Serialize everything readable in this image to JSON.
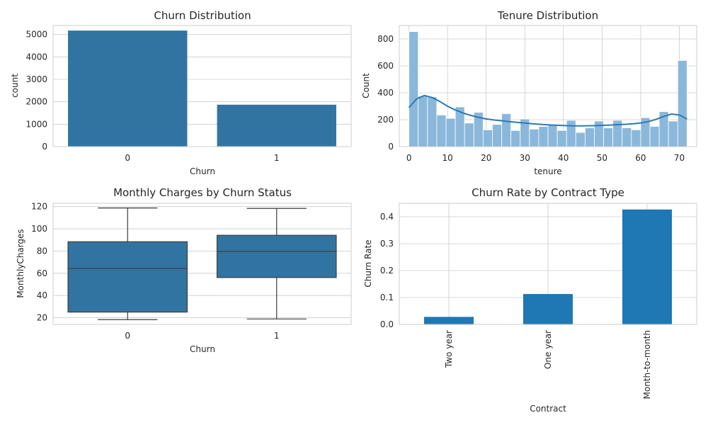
{
  "chart_data": [
    {
      "type": "bar",
      "title": "Churn Distribution",
      "xlabel": "Churn",
      "ylabel": "count",
      "categories": [
        "0",
        "1"
      ],
      "values": [
        5174,
        1869
      ],
      "ylim": [
        0,
        5400
      ],
      "yticks": [
        0,
        1000,
        2000,
        3000,
        4000,
        5000
      ],
      "color": "#3274a1",
      "grid": true
    },
    {
      "type": "histogram",
      "title": "Tenure Distribution",
      "xlabel": "tenure",
      "ylabel": "Count",
      "bin_start": 0,
      "bin_width": 2.4,
      "counts": [
        855,
        375,
        370,
        235,
        210,
        295,
        175,
        255,
        125,
        165,
        245,
        120,
        205,
        130,
        150,
        165,
        120,
        195,
        105,
        140,
        190,
        140,
        195,
        140,
        125,
        215,
        150,
        260,
        190,
        640
      ],
      "kde": {
        "x": [
          0,
          2,
          4,
          6,
          8,
          10,
          12,
          14,
          16,
          18,
          20,
          22,
          24,
          26,
          28,
          30,
          32,
          34,
          36,
          38,
          40,
          42,
          44,
          46,
          48,
          50,
          52,
          54,
          56,
          58,
          60,
          62,
          64,
          66,
          68,
          70,
          72
        ],
        "y": [
          290,
          355,
          380,
          365,
          335,
          300,
          272,
          250,
          232,
          218,
          206,
          198,
          192,
          186,
          180,
          175,
          170,
          166,
          162,
          159,
          157,
          155,
          154,
          155,
          156,
          158,
          160,
          163,
          166,
          170,
          176,
          186,
          203,
          225,
          242,
          236,
          205
        ]
      },
      "xlim": [
        -2.5,
        74.5
      ],
      "ylim": [
        0,
        900
      ],
      "xticks": [
        0,
        10,
        20,
        30,
        40,
        50,
        60,
        70
      ],
      "yticks": [
        0,
        200,
        400,
        600,
        800
      ],
      "bar_color": "#8bb8da",
      "line_color": "#2e78b5",
      "grid": true
    },
    {
      "type": "box",
      "title": "Monthly Charges by Churn Status",
      "xlabel": "Churn",
      "ylabel": "MonthlyCharges",
      "categories": [
        "0",
        "1"
      ],
      "boxes": [
        {
          "whisker_low": 18.3,
          "q1": 25.1,
          "median": 64.4,
          "q3": 88.4,
          "whisker_high": 118.8
        },
        {
          "whisker_low": 18.9,
          "q1": 56.2,
          "median": 79.7,
          "q3": 94.2,
          "whisker_high": 118.4
        }
      ],
      "ylim": [
        14,
        123
      ],
      "yticks": [
        20,
        40,
        60,
        80,
        100,
        120
      ],
      "color": "#3274a1",
      "grid": true
    },
    {
      "type": "bar",
      "title": "Churn Rate by Contract Type",
      "xlabel": "Contract",
      "ylabel": "Churn Rate",
      "categories": [
        "Two year",
        "One year",
        "Month-to-month"
      ],
      "values": [
        0.028,
        0.113,
        0.427
      ],
      "ylim": [
        0,
        0.45
      ],
      "yticks": [
        0.0,
        0.1,
        0.2,
        0.3,
        0.4
      ],
      "tick_labels_rotated": true,
      "color": "#1f77b4",
      "grid": true
    }
  ]
}
